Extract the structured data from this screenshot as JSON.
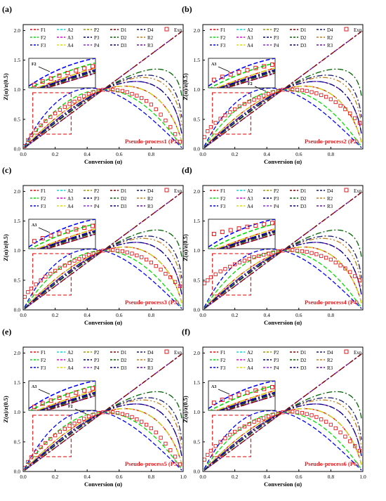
{
  "figure": {
    "y_axis_label": "Z(α)/z(0.5)",
    "x_axis_label": "Conversion (α)",
    "exp_label": "Exp.",
    "colors": {
      "F1": "#ff0000",
      "F2": "#00dd00",
      "F3": "#0000ff",
      "A2": "#00dddd",
      "A3": "#dd00dd",
      "A4": "#dddd00",
      "P2": "#999900",
      "P3": "#000080",
      "P4": "#8a2be2",
      "D1": "#8b0000",
      "D2": "#006400",
      "D3": "#00008b",
      "D4": "#191970",
      "R2": "#c67c1f",
      "R3": "#6a0dad",
      "Exp": "#e31a1c"
    }
  },
  "chart_data": [
    {
      "type": "line",
      "panel": "(a)",
      "title": "Pseudo-process1 (P1)",
      "inset_labels": [
        "F2"
      ],
      "xlim": [
        0,
        1.0
      ],
      "ylim": [
        0,
        2.1
      ],
      "x_ticks": [
        "0.0",
        "0.2",
        "0.4",
        "0.6",
        "0.8"
      ],
      "y_ticks": [
        "0.0",
        "0.5",
        "1.0",
        "1.5",
        "2.0"
      ],
      "legend": [
        "F1",
        "A2",
        "P2",
        "D1",
        "D4",
        "Exp.",
        "F2",
        "A3",
        "P3",
        "D2",
        "R2",
        "F3",
        "A4",
        "P4",
        "D3",
        "R3"
      ],
      "exp_points": {
        "x": [
          0.01,
          0.03,
          0.05,
          0.08,
          0.11,
          0.14,
          0.17,
          0.2,
          0.23,
          0.26,
          0.29,
          0.32,
          0.35,
          0.38,
          0.41,
          0.44,
          0.47,
          0.5,
          0.53,
          0.56,
          0.59,
          0.62,
          0.65,
          0.68,
          0.71,
          0.74,
          0.77,
          0.8,
          0.83,
          0.86,
          0.89,
          0.92,
          0.95,
          0.98
        ],
        "y": [
          0.05,
          0.15,
          0.23,
          0.32,
          0.4,
          0.47,
          0.54,
          0.6,
          0.66,
          0.71,
          0.76,
          0.8,
          0.85,
          0.89,
          0.93,
          0.96,
          0.99,
          1.0,
          1.0,
          1.0,
          0.99,
          0.98,
          0.96,
          0.93,
          0.9,
          0.86,
          0.81,
          0.75,
          0.67,
          0.58,
          0.48,
          0.37,
          0.25,
          0.12
        ]
      }
    },
    {
      "type": "line",
      "panel": "(b)",
      "title": "Pseudo-process2 (P2)",
      "inset_labels": [
        "A3",
        "F2"
      ],
      "xlim": [
        0,
        1.0
      ],
      "ylim": [
        0,
        2.1
      ],
      "x_ticks": [
        "0.0",
        "0.2",
        "0.4",
        "0.6",
        "0.8"
      ],
      "y_ticks": [
        "0.0",
        "0.5",
        "1.0",
        "1.5",
        "2.0"
      ],
      "legend": [
        "F1",
        "A2",
        "P2",
        "D1",
        "D4",
        "Exp.",
        "F2",
        "A3",
        "P3",
        "D2",
        "R2",
        "F3",
        "A4",
        "P4",
        "D3",
        "R3"
      ],
      "exp_points": {
        "x": [
          0.01,
          0.03,
          0.05,
          0.08,
          0.11,
          0.14,
          0.17,
          0.2,
          0.23,
          0.26,
          0.29,
          0.32,
          0.35,
          0.38,
          0.41,
          0.44,
          0.47,
          0.5,
          0.53,
          0.56,
          0.59,
          0.62,
          0.65,
          0.68,
          0.71,
          0.74,
          0.77,
          0.8,
          0.83,
          0.86,
          0.89,
          0.92,
          0.95,
          0.98
        ],
        "y": [
          0.2,
          0.3,
          0.37,
          0.44,
          0.51,
          0.57,
          0.62,
          0.67,
          0.72,
          0.76,
          0.8,
          0.83,
          0.87,
          0.9,
          0.93,
          0.96,
          0.98,
          1.0,
          1.0,
          1.0,
          1.0,
          0.99,
          0.98,
          0.96,
          0.94,
          0.91,
          0.88,
          0.84,
          0.79,
          0.73,
          0.67,
          0.6,
          0.52,
          0.44
        ]
      }
    },
    {
      "type": "line",
      "panel": "(c)",
      "title": "Pseudo-process3 (P3)",
      "inset_labels": [
        "A3"
      ],
      "xlim": [
        0,
        1.0
      ],
      "ylim": [
        0,
        2.1
      ],
      "x_ticks": [
        "0.0",
        "0.2",
        "0.4",
        "0.6",
        "0.8"
      ],
      "y_ticks": [
        "0.0",
        "0.5",
        "1.0",
        "1.5",
        "2.0"
      ],
      "legend": [
        "F1",
        "A2",
        "P2",
        "D1",
        "D4",
        "Exp.",
        "F2",
        "A3",
        "P3",
        "D2",
        "R2",
        "F3",
        "A4",
        "P4",
        "D3",
        "R3"
      ],
      "exp_points": {
        "x": [
          0.01,
          0.03,
          0.05,
          0.08,
          0.11,
          0.14,
          0.17,
          0.2,
          0.23,
          0.26,
          0.29,
          0.32,
          0.35,
          0.38,
          0.41,
          0.44,
          0.47,
          0.5,
          0.53,
          0.56,
          0.59,
          0.62,
          0.65,
          0.68,
          0.71,
          0.74,
          0.77,
          0.8,
          0.83,
          0.86,
          0.89,
          0.92,
          0.95,
          0.98
        ],
        "y": [
          0.22,
          0.3,
          0.36,
          0.43,
          0.5,
          0.56,
          0.61,
          0.66,
          0.71,
          0.75,
          0.79,
          0.83,
          0.86,
          0.9,
          0.93,
          0.95,
          0.98,
          1.0,
          1.01,
          1.01,
          1.0,
          0.99,
          0.97,
          0.95,
          0.92,
          0.89,
          0.85,
          0.8,
          0.74,
          0.68,
          0.61,
          0.55,
          0.47,
          0.4
        ]
      }
    },
    {
      "type": "line",
      "panel": "(d)",
      "title": "Pseudo-process4 (P4)",
      "inset_labels": [],
      "xlim": [
        0,
        1.0
      ],
      "ylim": [
        0,
        2.1
      ],
      "x_ticks": [
        "0.0",
        "0.2",
        "0.4",
        "0.6",
        "0.8"
      ],
      "y_ticks": [
        "0.0",
        "0.5",
        "1.0",
        "1.5",
        "2.0"
      ],
      "legend": [
        "F1",
        "A2",
        "P2",
        "D1",
        "D4",
        "Exp.",
        "F2",
        "A3",
        "P3",
        "D2",
        "R2",
        "F3",
        "A4",
        "P4",
        "D3",
        "R3"
      ],
      "exp_points": {
        "x": [
          0.01,
          0.03,
          0.05,
          0.08,
          0.11,
          0.14,
          0.17,
          0.2,
          0.23,
          0.26,
          0.29,
          0.32,
          0.35,
          0.38,
          0.41,
          0.44,
          0.47,
          0.5,
          0.53,
          0.56,
          0.59,
          0.62,
          0.65,
          0.68,
          0.71,
          0.74,
          0.77,
          0.8,
          0.83,
          0.86,
          0.89,
          0.92,
          0.95,
          0.98
        ],
        "y": [
          0.45,
          0.5,
          0.55,
          0.6,
          0.65,
          0.69,
          0.73,
          0.77,
          0.8,
          0.83,
          0.86,
          0.89,
          0.91,
          0.93,
          0.95,
          0.97,
          0.99,
          1.0,
          1.01,
          1.01,
          1.0,
          0.99,
          0.98,
          0.96,
          0.94,
          0.91,
          0.88,
          0.85,
          0.8,
          0.75,
          0.7,
          0.64,
          0.57,
          0.5
        ]
      }
    },
    {
      "type": "line",
      "panel": "(e)",
      "title": "Pseudo-process5 (P5)",
      "inset_labels": [
        "A3",
        "F2"
      ],
      "xlim": [
        0,
        1.0
      ],
      "ylim": [
        0,
        2.1
      ],
      "x_ticks": [
        "0.0",
        "0.2",
        "0.4",
        "0.6",
        "0.8",
        "1.0"
      ],
      "y_ticks": [
        "0.0",
        "0.5",
        "1.0",
        "1.5",
        "2.0"
      ],
      "legend": [
        "F1",
        "A2",
        "P2",
        "D1",
        "D4",
        "Exp.",
        "F2",
        "A3",
        "P3",
        "D2",
        "R2",
        "F3",
        "A4",
        "P4",
        "D3",
        "R3"
      ],
      "exp_points": {
        "x": [
          0.01,
          0.03,
          0.05,
          0.08,
          0.11,
          0.14,
          0.17,
          0.2,
          0.23,
          0.26,
          0.29,
          0.32,
          0.35,
          0.38,
          0.41,
          0.44,
          0.47,
          0.5,
          0.53,
          0.56,
          0.59,
          0.62,
          0.65,
          0.68,
          0.71,
          0.74,
          0.77,
          0.8,
          0.83,
          0.86,
          0.89,
          0.92,
          0.95,
          0.98
        ],
        "y": [
          0.06,
          0.16,
          0.24,
          0.33,
          0.41,
          0.48,
          0.55,
          0.61,
          0.67,
          0.72,
          0.77,
          0.81,
          0.85,
          0.89,
          0.93,
          0.96,
          0.99,
          1.0,
          1.0,
          1.0,
          0.99,
          0.97,
          0.95,
          0.92,
          0.88,
          0.84,
          0.79,
          0.73,
          0.66,
          0.57,
          0.47,
          0.36,
          0.25,
          0.12
        ]
      }
    },
    {
      "type": "line",
      "panel": "(f)",
      "title": "Pseudo-process6 (P6)",
      "inset_labels": [
        "A3"
      ],
      "xlim": [
        0,
        1.0
      ],
      "ylim": [
        0,
        2.1
      ],
      "x_ticks": [
        "0.0",
        "0.2",
        "0.4",
        "0.6",
        "0.8",
        "1.0"
      ],
      "y_ticks": [
        "0.0",
        "0.5",
        "1.0",
        "1.5",
        "2.0"
      ],
      "legend": [
        "F1",
        "A2",
        "P2",
        "D1",
        "D4",
        "Exp.",
        "F2",
        "A3",
        "P3",
        "D2",
        "R2",
        "F3",
        "A4",
        "P4",
        "D3",
        "R3"
      ],
      "exp_points": {
        "x": [
          0.01,
          0.03,
          0.05,
          0.08,
          0.11,
          0.14,
          0.17,
          0.2,
          0.23,
          0.26,
          0.29,
          0.32,
          0.35,
          0.38,
          0.41,
          0.44,
          0.47,
          0.5,
          0.53,
          0.56,
          0.59,
          0.62,
          0.65,
          0.68,
          0.71,
          0.74,
          0.77,
          0.8,
          0.83,
          0.86,
          0.89,
          0.92,
          0.95,
          0.98
        ],
        "y": [
          0.2,
          0.28,
          0.35,
          0.43,
          0.5,
          0.56,
          0.62,
          0.67,
          0.72,
          0.76,
          0.8,
          0.84,
          0.87,
          0.9,
          0.93,
          0.96,
          0.98,
          1.0,
          1.01,
          1.01,
          1.0,
          0.99,
          0.97,
          0.95,
          0.92,
          0.88,
          0.84,
          0.79,
          0.73,
          0.66,
          0.59,
          0.51,
          0.43,
          0.35
        ]
      }
    }
  ]
}
